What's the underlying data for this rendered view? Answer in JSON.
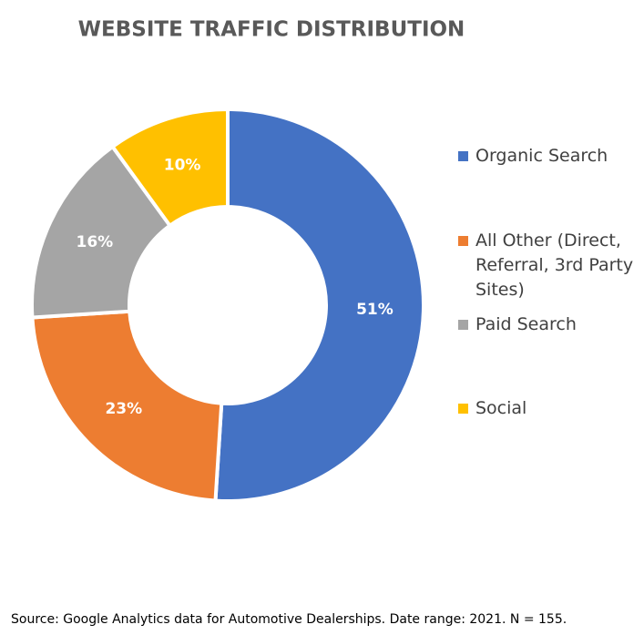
{
  "chart_data": {
    "type": "donut",
    "title": "WEBSITE TRAFFIC DISTRIBUTION",
    "categories": [
      "Organic Search",
      "All Other (Direct, Referral, 3rd Party Sites)",
      "Paid Search",
      "Social"
    ],
    "values": [
      51,
      23,
      16,
      10
    ],
    "value_labels": [
      "51%",
      "23%",
      "16%",
      "10%"
    ],
    "colors": [
      "#4472c4",
      "#ed7d31",
      "#a5a5a5",
      "#ffc000"
    ],
    "legend": "right",
    "source": "Source: Google Analytics data for Automotive Dealerships. Date range: 2021. N = 155."
  }
}
